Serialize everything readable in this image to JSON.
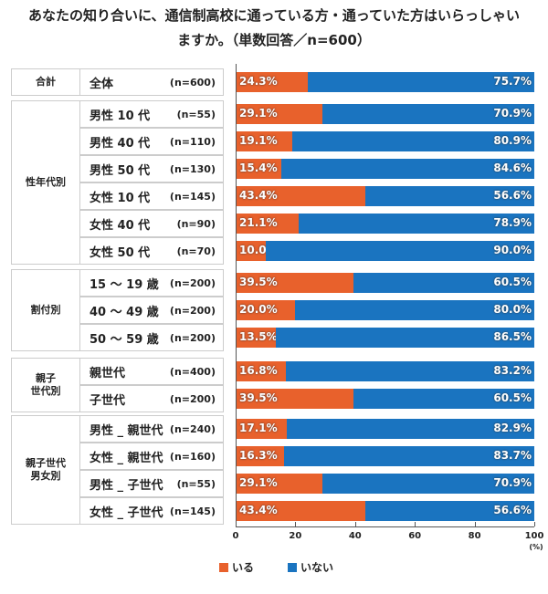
{
  "title_lines": [
    "あなたの知り合いに、通信制高校に通っている方・通っていた方はいらっしゃい",
    "ますか。（単数回答／n=600）"
  ],
  "chart_data": {
    "type": "bar",
    "stacked": true,
    "orientation": "horizontal",
    "title": "あなたの知り合いに、通信制高校に通っている方・通っていた方はいらっしゃいますか。（単数回答／n=600）",
    "xlim": [
      0,
      100
    ],
    "xticks": [
      "0",
      "20",
      "40",
      "60",
      "80",
      "100"
    ],
    "xunit": "(%)",
    "legend": {
      "position": "bottom",
      "entries": [
        "いる",
        "いない"
      ]
    },
    "colors": {
      "いる": "#e8612c",
      "いない": "#1a74c0"
    },
    "groups": [
      {
        "name": "合計",
        "rows": [
          {
            "label": "全体",
            "n": "(n=600)",
            "values": [
              24.3,
              75.7
            ]
          }
        ]
      },
      {
        "name": "性年代別",
        "rows": [
          {
            "label": "男性 10 代",
            "n": "(n=55)",
            "values": [
              29.1,
              70.9
            ]
          },
          {
            "label": "男性 40 代",
            "n": "(n=110)",
            "values": [
              19.1,
              80.9
            ]
          },
          {
            "label": "男性 50 代",
            "n": "(n=130)",
            "values": [
              15.4,
              84.6
            ]
          },
          {
            "label": "女性 10 代",
            "n": "(n=145)",
            "values": [
              43.4,
              56.6
            ]
          },
          {
            "label": "女性 40 代",
            "n": "(n=90)",
            "values": [
              21.1,
              78.9
            ]
          },
          {
            "label": "女性 50 代",
            "n": "(n=70)",
            "values": [
              10.0,
              90.0
            ]
          }
        ]
      },
      {
        "name": "割付別",
        "rows": [
          {
            "label": "15 ～ 19 歳",
            "n": "(n=200)",
            "values": [
              39.5,
              60.5
            ]
          },
          {
            "label": "40 ～ 49 歳",
            "n": "(n=200)",
            "values": [
              20.0,
              80.0
            ]
          },
          {
            "label": "50 ～ 59 歳",
            "n": "(n=200)",
            "values": [
              13.5,
              86.5
            ]
          }
        ]
      },
      {
        "name": "親子\n世代別",
        "rows": [
          {
            "label": "親世代",
            "n": "(n=400)",
            "values": [
              16.8,
              83.2
            ]
          },
          {
            "label": "子世代",
            "n": "(n=200)",
            "values": [
              39.5,
              60.5
            ]
          }
        ]
      },
      {
        "name": "親子世代\n男女別",
        "rows": [
          {
            "label": "男性 _ 親世代",
            "n": "(n=240)",
            "values": [
              17.1,
              82.9
            ]
          },
          {
            "label": "女性 _ 親世代",
            "n": "(n=160)",
            "values": [
              16.3,
              83.7
            ]
          },
          {
            "label": "男性 _ 子世代",
            "n": "(n=55)",
            "values": [
              29.1,
              70.9
            ]
          },
          {
            "label": "女性 _ 子世代",
            "n": "(n=145)",
            "values": [
              43.4,
              56.6
            ]
          }
        ]
      }
    ]
  }
}
